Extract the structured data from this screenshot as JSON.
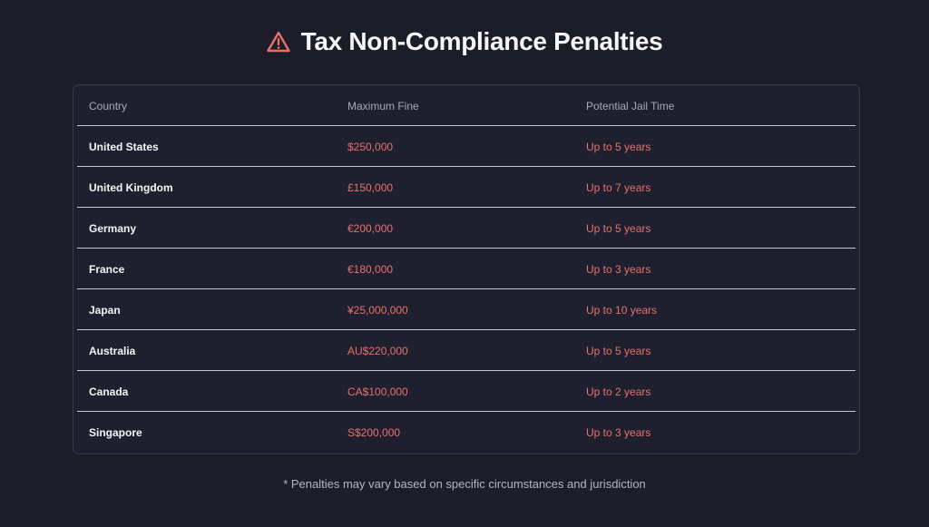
{
  "header": {
    "title": "Tax Non-Compliance Penalties"
  },
  "table": {
    "columns": [
      "Country",
      "Maximum Fine",
      "Potential Jail Time"
    ],
    "rows": [
      [
        "United States",
        "$250,000",
        "Up to 5 years"
      ],
      [
        "United Kingdom",
        "£150,000",
        "Up to 7 years"
      ],
      [
        "Germany",
        "€200,000",
        "Up to 5 years"
      ],
      [
        "France",
        "€180,000",
        "Up to 3 years"
      ],
      [
        "Japan",
        "¥25,000,000",
        "Up to 10 years"
      ],
      [
        "Australia",
        "AU$220,000",
        "Up to 5 years"
      ],
      [
        "Canada",
        "CA$100,000",
        "Up to 2 years"
      ],
      [
        "Singapore",
        "S$200,000",
        "Up to 3 years"
      ]
    ]
  },
  "footnote": "* Penalties may vary based on specific circumstances and jurisdiction"
}
